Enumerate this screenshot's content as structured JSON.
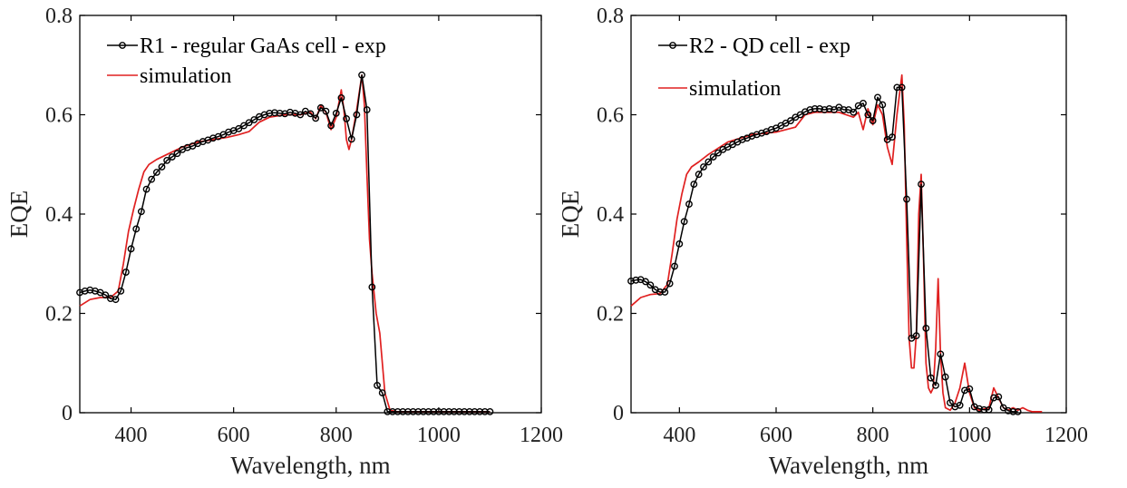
{
  "chart_data": [
    {
      "type": "line",
      "xlabel": "Wavelength, nm",
      "ylabel": "EQE",
      "xlim": [
        300,
        1200
      ],
      "ylim": [
        0,
        0.8
      ],
      "xticks": [
        "400",
        "600",
        "800",
        "1000",
        "1200"
      ],
      "yticks": [
        "0",
        "0.2",
        "0.4",
        "0.6",
        "0.8"
      ],
      "legend_position": "top-left",
      "series": [
        {
          "name": "R1 - regular GaAs cell - exp",
          "color": "#000000",
          "marker": "circle",
          "x": [
            300,
            310,
            320,
            330,
            340,
            350,
            360,
            370,
            380,
            390,
            400,
            410,
            420,
            430,
            440,
            450,
            460,
            470,
            480,
            490,
            500,
            510,
            520,
            530,
            540,
            550,
            560,
            570,
            580,
            590,
            600,
            610,
            620,
            630,
            640,
            650,
            660,
            670,
            680,
            690,
            700,
            710,
            720,
            730,
            740,
            750,
            760,
            770,
            780,
            790,
            800,
            810,
            820,
            830,
            840,
            850,
            860,
            870,
            880,
            890,
            900,
            910,
            920,
            930,
            940,
            950,
            960,
            970,
            980,
            990,
            1000,
            1010,
            1020,
            1030,
            1040,
            1050,
            1060,
            1070,
            1080,
            1090,
            1100
          ],
          "y": [
            0.242,
            0.245,
            0.247,
            0.245,
            0.242,
            0.237,
            0.23,
            0.228,
            0.245,
            0.283,
            0.33,
            0.37,
            0.405,
            0.45,
            0.47,
            0.484,
            0.495,
            0.508,
            0.515,
            0.522,
            0.53,
            0.534,
            0.537,
            0.542,
            0.546,
            0.549,
            0.553,
            0.556,
            0.56,
            0.565,
            0.568,
            0.572,
            0.578,
            0.584,
            0.59,
            0.596,
            0.6,
            0.603,
            0.604,
            0.603,
            0.602,
            0.605,
            0.603,
            0.6,
            0.607,
            0.602,
            0.593,
            0.614,
            0.607,
            0.578,
            0.603,
            0.634,
            0.592,
            0.551,
            0.6,
            0.68,
            0.61,
            0.253,
            0.055,
            0.04,
            0.002,
            0.002,
            0.002,
            0.002,
            0.002,
            0.002,
            0.002,
            0.002,
            0.002,
            0.002,
            0.002,
            0.002,
            0.002,
            0.002,
            0.002,
            0.002,
            0.002,
            0.002,
            0.002,
            0.002,
            0.002
          ]
        },
        {
          "name": "simulation",
          "color": "#e02020",
          "marker": "none",
          "x": [
            300,
            320,
            340,
            360,
            375,
            385,
            395,
            405,
            415,
            425,
            435,
            450,
            470,
            500,
            530,
            560,
            590,
            610,
            630,
            650,
            670,
            700,
            730,
            750,
            760,
            770,
            780,
            790,
            800,
            810,
            815,
            820,
            825,
            830,
            840,
            850,
            855,
            860,
            865,
            870,
            878,
            885,
            890,
            895,
            905,
            920,
            950,
            1000,
            1050,
            1100
          ],
          "y": [
            0.215,
            0.228,
            0.232,
            0.232,
            0.245,
            0.3,
            0.365,
            0.41,
            0.45,
            0.485,
            0.5,
            0.51,
            0.52,
            0.535,
            0.545,
            0.55,
            0.555,
            0.56,
            0.566,
            0.585,
            0.595,
            0.6,
            0.6,
            0.605,
            0.592,
            0.618,
            0.605,
            0.57,
            0.595,
            0.65,
            0.61,
            0.55,
            0.53,
            0.55,
            0.61,
            0.68,
            0.62,
            0.48,
            0.35,
            0.28,
            0.2,
            0.16,
            0.1,
            0.04,
            0.005,
            0.002,
            0.002,
            0.002,
            0.002,
            0.002
          ]
        }
      ]
    },
    {
      "type": "line",
      "xlabel": "Wavelength, nm",
      "ylabel": "EQE",
      "xlim": [
        300,
        1200
      ],
      "ylim": [
        0,
        0.8
      ],
      "xticks": [
        "400",
        "600",
        "800",
        "1000",
        "1200"
      ],
      "yticks": [
        "0",
        "0.2",
        "0.4",
        "0.6",
        "0.8"
      ],
      "legend_position": "top-left",
      "series": [
        {
          "name": "R2 - QD cell - exp",
          "color": "#000000",
          "marker": "circle",
          "x": [
            300,
            310,
            320,
            330,
            340,
            350,
            360,
            370,
            380,
            390,
            400,
            410,
            420,
            430,
            440,
            450,
            460,
            470,
            480,
            490,
            500,
            510,
            520,
            530,
            540,
            550,
            560,
            570,
            580,
            590,
            600,
            610,
            620,
            630,
            640,
            650,
            660,
            670,
            680,
            690,
            700,
            710,
            720,
            730,
            740,
            750,
            760,
            770,
            780,
            790,
            800,
            810,
            820,
            830,
            840,
            850,
            860,
            870,
            880,
            890,
            900,
            910,
            920,
            930,
            940,
            950,
            960,
            970,
            980,
            990,
            1000,
            1010,
            1020,
            1030,
            1040,
            1050,
            1060,
            1070,
            1080,
            1090,
            1100
          ],
          "y": [
            0.265,
            0.267,
            0.268,
            0.264,
            0.257,
            0.248,
            0.243,
            0.243,
            0.26,
            0.295,
            0.34,
            0.385,
            0.42,
            0.46,
            0.48,
            0.495,
            0.505,
            0.515,
            0.523,
            0.53,
            0.535,
            0.54,
            0.545,
            0.55,
            0.553,
            0.557,
            0.56,
            0.563,
            0.566,
            0.57,
            0.573,
            0.578,
            0.583,
            0.588,
            0.595,
            0.6,
            0.606,
            0.61,
            0.612,
            0.612,
            0.61,
            0.612,
            0.61,
            0.615,
            0.61,
            0.61,
            0.605,
            0.618,
            0.623,
            0.6,
            0.588,
            0.635,
            0.62,
            0.55,
            0.555,
            0.655,
            0.655,
            0.43,
            0.15,
            0.155,
            0.46,
            0.17,
            0.07,
            0.055,
            0.118,
            0.072,
            0.02,
            0.012,
            0.015,
            0.045,
            0.048,
            0.012,
            0.008,
            0.006,
            0.006,
            0.03,
            0.032,
            0.01,
            0.004,
            0.002,
            0.002
          ]
        },
        {
          "name": "simulation",
          "color": "#e02020",
          "marker": "none",
          "x": [
            300,
            320,
            340,
            360,
            375,
            385,
            395,
            405,
            415,
            425,
            440,
            460,
            500,
            550,
            600,
            640,
            660,
            680,
            700,
            730,
            760,
            770,
            780,
            790,
            800,
            810,
            820,
            830,
            840,
            850,
            860,
            865,
            870,
            875,
            880,
            885,
            890,
            895,
            900,
            905,
            910,
            915,
            920,
            925,
            930,
            935,
            940,
            945,
            950,
            960,
            970,
            980,
            990,
            1000,
            1010,
            1020,
            1040,
            1050,
            1060,
            1070,
            1080,
            1090,
            1100,
            1110,
            1120,
            1130,
            1150
          ],
          "y": [
            0.215,
            0.232,
            0.238,
            0.24,
            0.258,
            0.32,
            0.39,
            0.44,
            0.48,
            0.495,
            0.505,
            0.52,
            0.545,
            0.56,
            0.565,
            0.575,
            0.6,
            0.605,
            0.605,
            0.605,
            0.595,
            0.605,
            0.57,
            0.612,
            0.58,
            0.62,
            0.6,
            0.535,
            0.5,
            0.6,
            0.68,
            0.58,
            0.35,
            0.15,
            0.09,
            0.09,
            0.16,
            0.4,
            0.48,
            0.3,
            0.1,
            0.05,
            0.04,
            0.05,
            0.13,
            0.27,
            0.12,
            0.04,
            0.01,
            0.005,
            0.02,
            0.05,
            0.1,
            0.04,
            0.01,
            0.005,
            0.01,
            0.05,
            0.03,
            0.01,
            0.005,
            0.01,
            0.005,
            0.01,
            0.005,
            0.002,
            0.002
          ]
        }
      ]
    }
  ]
}
